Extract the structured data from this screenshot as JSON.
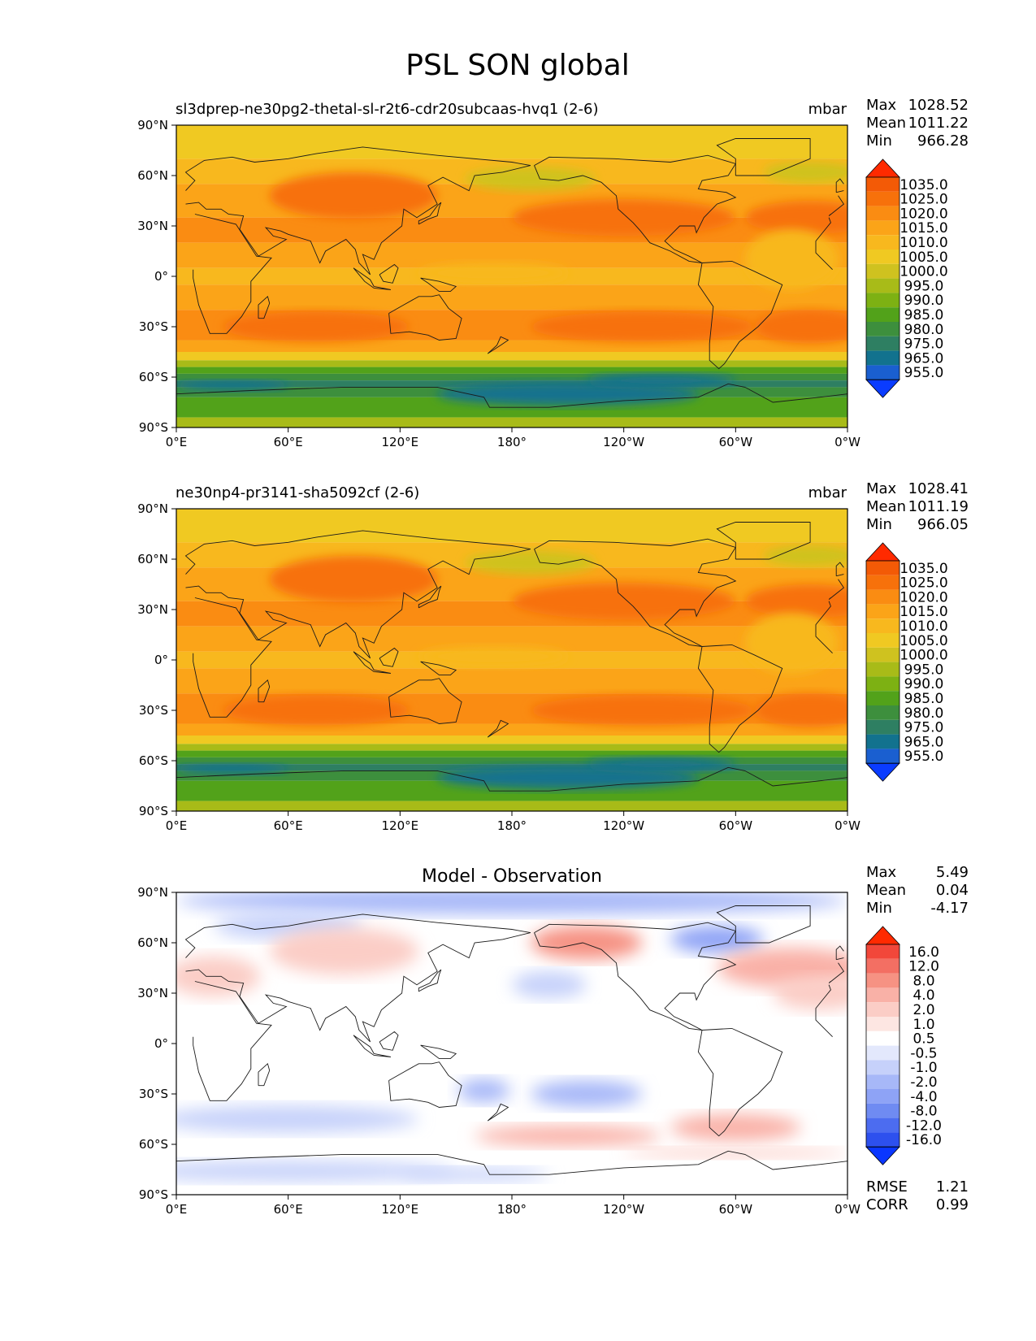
{
  "figure": {
    "title": "PSL SON global",
    "units_label": "mbar",
    "stat_labels": [
      "Max",
      "Mean",
      "Min"
    ],
    "x_ticks": [
      "0°E",
      "60°E",
      "120°E",
      "180°",
      "120°W",
      "60°W",
      "0°W"
    ],
    "y_ticks": [
      "90°N",
      "60°N",
      "30°N",
      "0°",
      "30°S",
      "60°S",
      "90°S"
    ],
    "field_levels": [
      "1035.0",
      "1025.0",
      "1020.0",
      "1015.0",
      "1010.0",
      "1005.0",
      "1000.0",
      "995.0",
      "990.0",
      "985.0",
      "980.0",
      "975.0",
      "965.0",
      "955.0"
    ],
    "field_colors": [
      "#ff2a00",
      "#f35a06",
      "#f7710b",
      "#fa8c12",
      "#fba418",
      "#f8b81e",
      "#f0c922",
      "#cfc21f",
      "#a8bb18",
      "#7db113",
      "#52a21a",
      "#3d8f3d",
      "#2e7f62",
      "#12728e",
      "#1a5fd0",
      "#0a3cff"
    ],
    "diff_levels": [
      "16.0",
      "12.0",
      "8.0",
      "4.0",
      "2.0",
      "1.0",
      "0.5",
      "-0.5",
      "-1.0",
      "-2.0",
      "-4.0",
      "-8.0",
      "-12.0",
      "-16.0"
    ],
    "diff_colors": [
      "#ff2a00",
      "#f2473a",
      "#f36f63",
      "#f69283",
      "#f9b1a7",
      "#fbcdc6",
      "#fde6e2",
      "#ffffff",
      "#e3e8fc",
      "#c6d1fa",
      "#a7b8f8",
      "#8ea3f6",
      "#6f8bf2",
      "#4c6cf0",
      "#2d50ee",
      "#0a36ff"
    ]
  },
  "panels": [
    {
      "title": "sl3dprep-ne30pg2-thetal-sl-r2t6-cdr20subcaas-hvq1 (2-6)",
      "units": "mbar",
      "stats": {
        "max": "1028.52",
        "mean": "1011.22",
        "min": "966.28"
      }
    },
    {
      "title": "ne30np4-pr3141-sha5092cf (2-6)",
      "units": "mbar",
      "stats": {
        "max": "1028.41",
        "mean": "1011.19",
        "min": "966.05"
      }
    },
    {
      "title": "Model - Observation",
      "stats": {
        "max": "5.49",
        "mean": "0.04",
        "min": "-4.17"
      },
      "rmse_label": "RMSE",
      "rmse": "1.21",
      "corr_label": "CORR",
      "corr": "0.99"
    }
  ],
  "chart_data": [
    {
      "type": "heatmap",
      "title": "sl3dprep-ne30pg2-thetal-sl-r2t6-cdr20subcaas-hvq1 (2-6)",
      "variable": "PSL",
      "units": "mbar",
      "max": 1028.52,
      "mean": 1011.22,
      "min": 966.28,
      "colorbar_levels": [
        1035,
        1025,
        1020,
        1015,
        1010,
        1005,
        1000,
        995,
        990,
        985,
        980,
        975,
        965,
        955
      ],
      "xlim": [
        0,
        360
      ],
      "ylim": [
        -90,
        90
      ]
    },
    {
      "type": "heatmap",
      "title": "ne30np4-pr3141-sha5092cf (2-6)",
      "variable": "PSL",
      "units": "mbar",
      "max": 1028.41,
      "mean": 1011.19,
      "min": 966.05,
      "colorbar_levels": [
        1035,
        1025,
        1020,
        1015,
        1010,
        1005,
        1000,
        995,
        990,
        985,
        980,
        975,
        965,
        955
      ],
      "xlim": [
        0,
        360
      ],
      "ylim": [
        -90,
        90
      ]
    },
    {
      "type": "heatmap",
      "title": "Model - Observation",
      "variable": "PSL difference",
      "max": 5.49,
      "mean": 0.04,
      "min": -4.17,
      "rmse": 1.21,
      "corr": 0.99,
      "colorbar_levels": [
        16,
        12,
        8,
        4,
        2,
        1,
        0.5,
        -0.5,
        -1,
        -2,
        -4,
        -8,
        -12,
        -16
      ],
      "xlim": [
        0,
        360
      ],
      "ylim": [
        -90,
        90
      ]
    }
  ]
}
